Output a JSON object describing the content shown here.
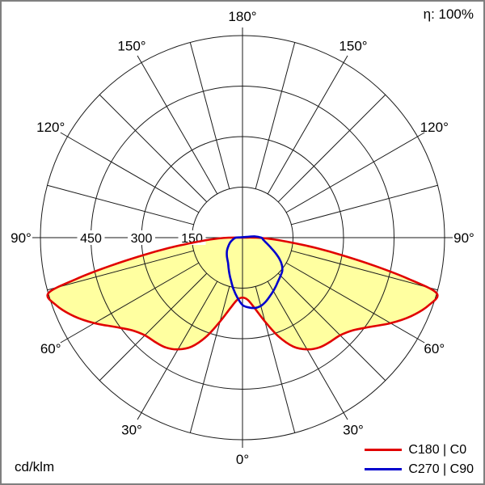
{
  "labels": {
    "efficiency": "η: 100%",
    "unit": "cd/klm"
  },
  "chart_data": {
    "type": "polar",
    "title": "Luminous intensity distribution curve (photometric polar diagram)",
    "unit": "cd/klm",
    "efficiency": "η: 100%",
    "angle_convention": "degrees from nadir; 0° bottom, 180° top; negative = left half (C180/C270 planes), positive = right half (C0/C90 planes)",
    "r_max": 600,
    "rings": [
      150,
      300,
      450,
      600
    ],
    "radial_tick_labels": [
      {
        "value": 150,
        "label": "150"
      },
      {
        "value": 300,
        "label": "300"
      },
      {
        "value": 450,
        "label": "450"
      }
    ],
    "angle_ticks": [
      {
        "deg": 0,
        "label": "0°"
      },
      {
        "deg": 30,
        "label": "30°"
      },
      {
        "deg": 60,
        "label": "60°"
      },
      {
        "deg": 90,
        "label": "90°"
      },
      {
        "deg": 120,
        "label": "120°"
      },
      {
        "deg": 150,
        "label": "150°"
      },
      {
        "deg": 180,
        "label": "180°"
      }
    ],
    "spoke_step_deg": 15,
    "grid_color": "#1a1a1a",
    "legend_position": "bottom-right",
    "series": [
      {
        "name": "C180 | C0",
        "color": "#e10000",
        "fill": "#ffffa0",
        "angles": [
          -92,
          -90,
          -88,
          -86,
          -84,
          -82,
          -80,
          -78,
          -76,
          -74,
          -70,
          -65,
          -60,
          -55,
          -50,
          -45,
          -40,
          -35,
          -30,
          -25,
          -20,
          -15,
          -10,
          -5,
          0,
          5,
          10,
          15,
          20,
          25,
          30,
          35,
          40,
          45,
          50,
          55,
          60,
          65,
          70,
          74,
          76,
          78,
          80,
          82,
          84,
          86,
          88,
          90,
          92
        ],
        "values": [
          10,
          40,
          72,
          108,
          155,
          222,
          300,
          400,
          510,
          600,
          588,
          552,
          508,
          462,
          428,
          410,
          404,
          398,
          383,
          357,
          312,
          258,
          214,
          186,
          178,
          186,
          214,
          258,
          312,
          357,
          383,
          398,
          404,
          410,
          428,
          462,
          508,
          552,
          588,
          600,
          510,
          400,
          300,
          222,
          155,
          108,
          72,
          40,
          10
        ]
      },
      {
        "name": "C270 | C90",
        "color": "#0000cd",
        "fill": "none",
        "angles": [
          -96,
          -90,
          -80,
          -70,
          -60,
          -50,
          -40,
          -30,
          -25,
          -20,
          -15,
          -10,
          -5,
          0,
          5,
          10,
          15,
          20,
          25,
          30,
          35,
          40,
          45,
          50,
          55,
          60,
          65,
          70,
          75,
          80,
          85,
          90,
          96,
          100
        ],
        "values": [
          8,
          20,
          28,
          38,
          48,
          60,
          72,
          86,
          98,
          114,
          132,
          155,
          178,
          200,
          208,
          212,
          210,
          202,
          192,
          183,
          174,
          166,
          160,
          154,
          143,
          127,
          108,
          91,
          78,
          68,
          61,
          56,
          36,
          12
        ]
      }
    ]
  }
}
